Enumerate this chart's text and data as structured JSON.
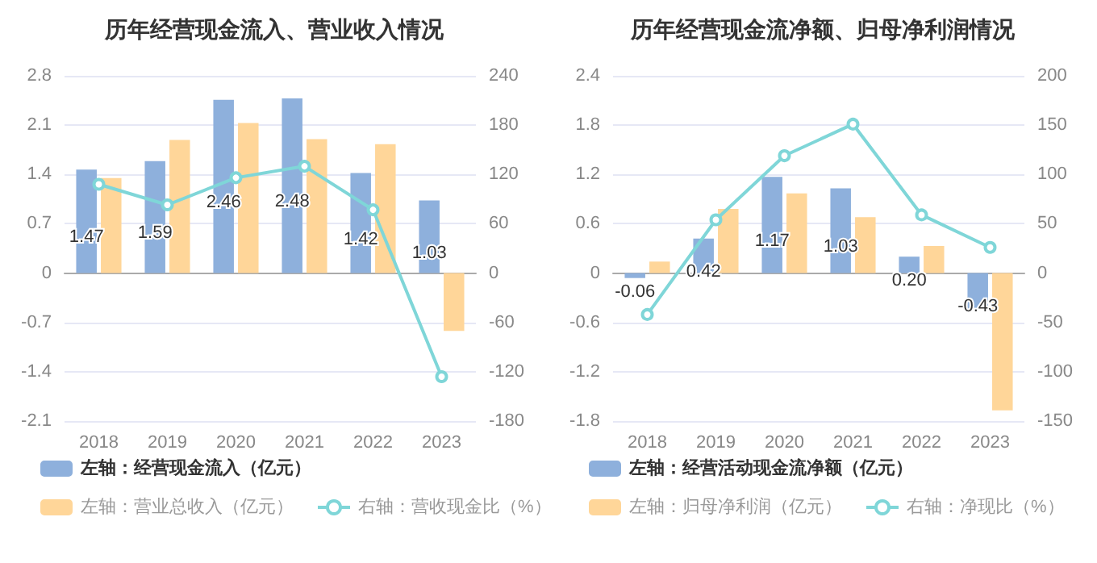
{
  "chart_data": [
    {
      "type": "bar",
      "title": "历年经营现金流入、营业收入情况",
      "categories": [
        "2018",
        "2019",
        "2020",
        "2021",
        "2022",
        "2023"
      ],
      "series": [
        {
          "name": "左轴：经营现金流入（亿元）",
          "color": "#8eb0dc",
          "values": [
            1.47,
            1.59,
            2.46,
            2.48,
            1.42,
            1.03
          ],
          "value_labels": [
            "1.47",
            "1.59",
            "2.46",
            "2.48",
            "1.42",
            "1.03"
          ]
        },
        {
          "name": "左轴：营业总收入（亿元）",
          "color": "#ffd699",
          "values": [
            1.35,
            1.89,
            2.13,
            1.9,
            1.83,
            -0.82
          ]
        },
        {
          "name": "右轴：营收现金比（%）",
          "type": "line",
          "axis": "y2",
          "color": "#7fd6d8",
          "values": [
            108,
            83,
            116,
            130,
            77,
            -126
          ]
        }
      ],
      "ylim": [
        -2.1,
        2.8
      ],
      "yticks": [
        -2.1,
        -1.4,
        -0.7,
        0,
        0.7,
        1.4,
        2.1,
        2.8
      ],
      "y2lim": [
        -180,
        240
      ],
      "y2ticks": [
        -180,
        -120,
        -60,
        0,
        60,
        120,
        180,
        240
      ],
      "grid": "y",
      "legend": "bottom left",
      "marker": "circle",
      "line_style": "solid"
    },
    {
      "type": "bar",
      "title": "历年经营现金流净额、归母净利润情况",
      "categories": [
        "2018",
        "2019",
        "2020",
        "2021",
        "2022",
        "2023"
      ],
      "series": [
        {
          "name": "左轴：经营活动现金流净额（亿元）",
          "color": "#8eb0dc",
          "values": [
            -0.06,
            0.42,
            1.17,
            1.03,
            0.2,
            -0.43
          ],
          "value_labels": [
            "-0.06",
            "0.42",
            "1.17",
            "1.03",
            "0.20",
            "-0.43"
          ]
        },
        {
          "name": "左轴：归母净利润（亿元）",
          "color": "#ffd699",
          "values": [
            0.14,
            0.78,
            0.97,
            0.68,
            0.33,
            -1.67
          ]
        },
        {
          "name": "右轴：净现比（%）",
          "type": "line",
          "axis": "y2",
          "color": "#7fd6d8",
          "values": [
            -42,
            54,
            119,
            151,
            59,
            26
          ]
        }
      ],
      "ylim": [
        -1.8,
        2.4
      ],
      "yticks": [
        -1.8,
        -1.2,
        -0.6,
        0,
        0.6,
        1.2,
        1.8,
        2.4
      ],
      "y2lim": [
        -150,
        200
      ],
      "y2ticks": [
        -150,
        -100,
        -50,
        0,
        50,
        100,
        150,
        200
      ],
      "grid": "y",
      "legend": "bottom left",
      "marker": "circle",
      "line_style": "solid"
    }
  ]
}
